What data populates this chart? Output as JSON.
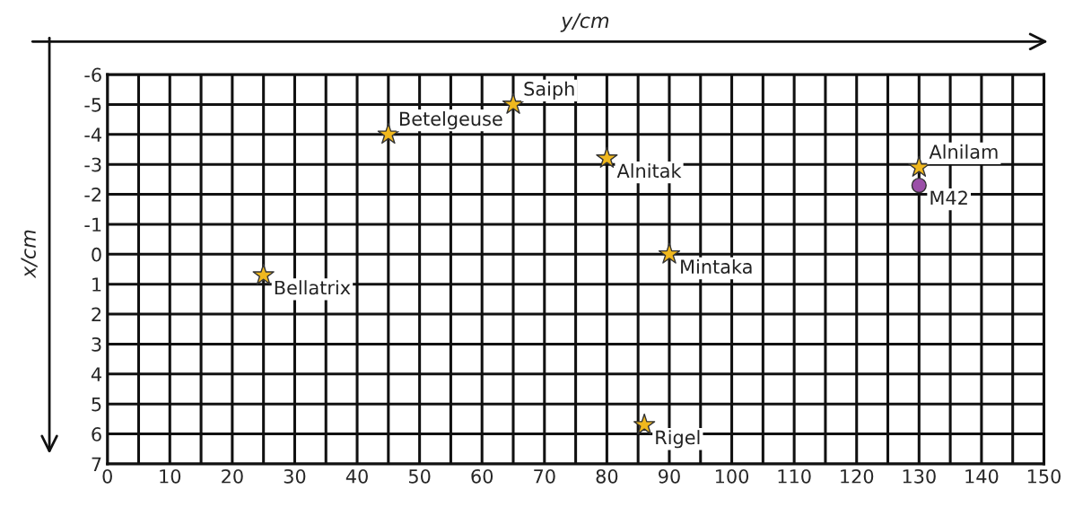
{
  "chart_data": {
    "type": "scatter",
    "xlabel": "y/cm",
    "ylabel": "x/cm",
    "series": [
      {
        "color": "#f0b81e",
        "marker": "star",
        "x": [
          45,
          65,
          80,
          130,
          90,
          25,
          86
        ],
        "values": [
          -4.0,
          -5.0,
          -3.2,
          -2.9,
          0.0,
          0.7,
          5.7
        ]
      },
      {
        "color": "#9b4fa8",
        "marker": "circle",
        "x": [
          130
        ],
        "values": [
          -2.3
        ]
      }
    ],
    "annotations": [
      {
        "text": "Betelgeuse",
        "x": 45,
        "y": -4.0
      },
      {
        "text": "Saiph",
        "x": 65,
        "y": -5.0
      },
      {
        "text": "Alnitak",
        "x": 80,
        "y": -3.2
      },
      {
        "text": "Alnilam",
        "x": 130,
        "y": -2.9
      },
      {
        "text": "Mintaka",
        "x": 90,
        "y": 0.0
      },
      {
        "text": "Bellatrix",
        "x": 25,
        "y": 0.7
      },
      {
        "text": "Rigel",
        "x": 86,
        "y": 5.7
      },
      {
        "text": "M42",
        "x": 130,
        "y": -2.3
      }
    ],
    "xlim": [
      0,
      150
    ],
    "ylim": [
      7,
      -6
    ],
    "xticks": [
      0,
      {
        "value": 5,
        "label": null
      },
      10,
      {
        "value": 15,
        "label": null
      },
      20,
      {
        "value": 25,
        "label": null
      },
      30,
      {
        "value": 35,
        "label": null
      },
      40,
      {
        "value": 45,
        "label": null
      },
      50,
      {
        "value": 55,
        "label": null
      },
      60,
      {
        "value": 65,
        "label": null
      },
      70,
      {
        "value": 75,
        "label": null
      },
      80,
      {
        "value": 85,
        "label": null
      },
      90,
      {
        "value": 95,
        "label": null
      },
      100,
      {
        "value": 105,
        "label": null
      },
      110,
      {
        "value": 115,
        "label": null
      },
      120,
      {
        "value": 125,
        "label": null
      },
      130,
      {
        "value": 135,
        "label": null
      },
      140,
      {
        "value": 145,
        "label": null
      },
      150
    ],
    "yticks": [
      -6,
      -5,
      -4,
      -3,
      -2,
      -1,
      0,
      1,
      2,
      3,
      4,
      5,
      6,
      7
    ],
    "grid": true
  }
}
